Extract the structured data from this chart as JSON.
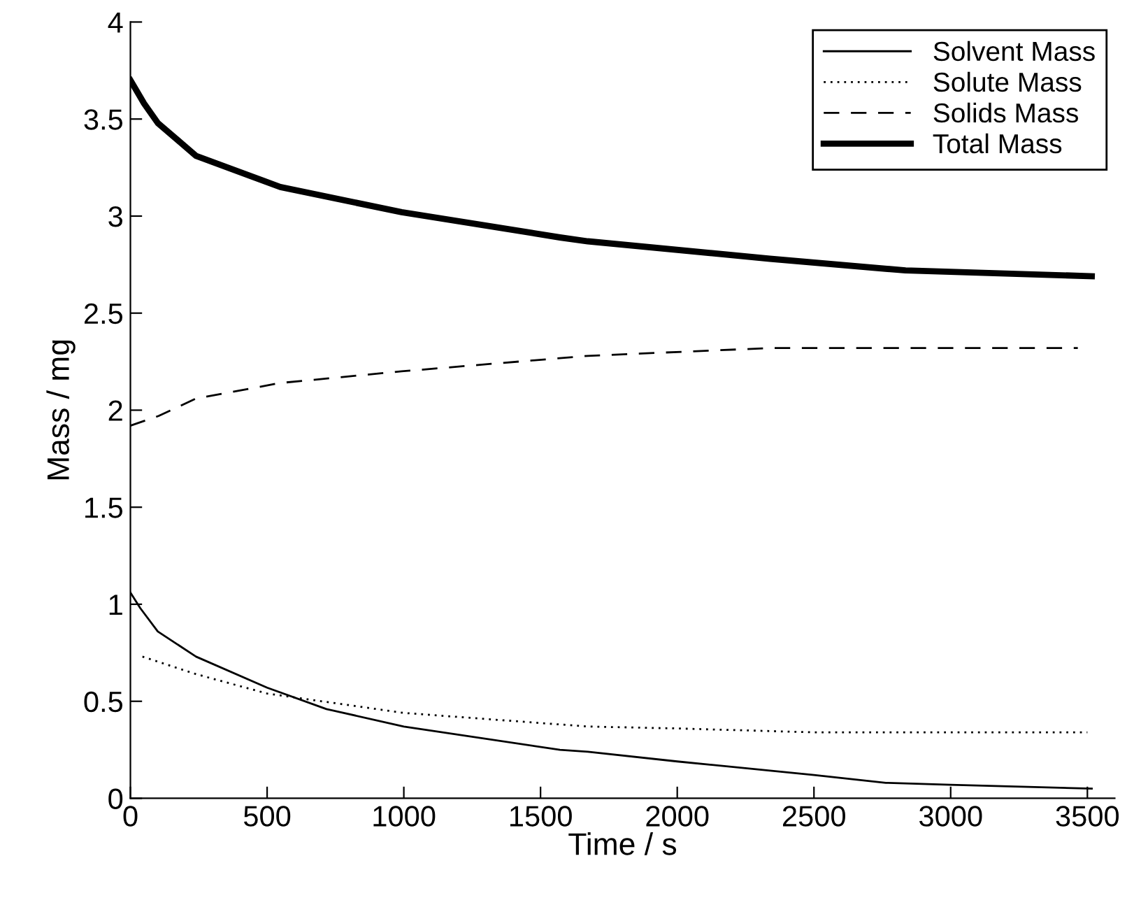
{
  "chart_data": {
    "type": "line",
    "xlabel": "Time / s",
    "ylabel": "Mass / mg",
    "xlim": [
      0,
      3600
    ],
    "xticks": [
      0,
      500,
      1000,
      1500,
      2000,
      2500,
      3000,
      3500
    ],
    "ylim": [
      0,
      4
    ],
    "yticks": [
      0,
      0.5,
      1,
      1.5,
      2,
      2.5,
      3,
      3.5,
      4
    ],
    "legend": "top right",
    "grid": false,
    "series": [
      {
        "name": "Solvent Mass",
        "color": "#000000",
        "line_style": "solid",
        "x": [
          0,
          36,
          100,
          240,
          500,
          717,
          1000,
          1571,
          1673,
          2000,
          2500,
          2763,
          3000,
          3516
        ],
        "values": [
          1.06,
          0.98,
          0.86,
          0.73,
          0.57,
          0.46,
          0.37,
          0.25,
          0.24,
          0.19,
          0.12,
          0.08,
          0.07,
          0.05
        ]
      },
      {
        "name": "Solute Mass",
        "color": "#000000",
        "line_style": "dotted",
        "x": [
          44,
          240,
          500,
          1000,
          1673,
          2000,
          2500,
          3500
        ],
        "values": [
          0.73,
          0.64,
          0.54,
          0.44,
          0.37,
          0.36,
          0.34,
          0.34
        ]
      },
      {
        "name": "Solids Mass",
        "color": "#000000",
        "line_style": "dashed",
        "x": [
          0,
          103,
          240,
          548,
          992,
          1673,
          2339,
          3465
        ],
        "values": [
          1.92,
          1.97,
          2.06,
          2.14,
          2.2,
          2.28,
          2.32,
          2.32
        ]
      },
      {
        "name": "Total Mass",
        "color": "#000000",
        "line_style": "solid",
        "x": [
          0,
          50,
          100,
          240,
          548,
          992,
          1571,
          1673,
          2339,
          2835,
          3516
        ],
        "values": [
          3.7,
          3.58,
          3.48,
          3.31,
          3.15,
          3.02,
          2.89,
          2.87,
          2.78,
          2.72,
          2.69
        ]
      }
    ]
  }
}
